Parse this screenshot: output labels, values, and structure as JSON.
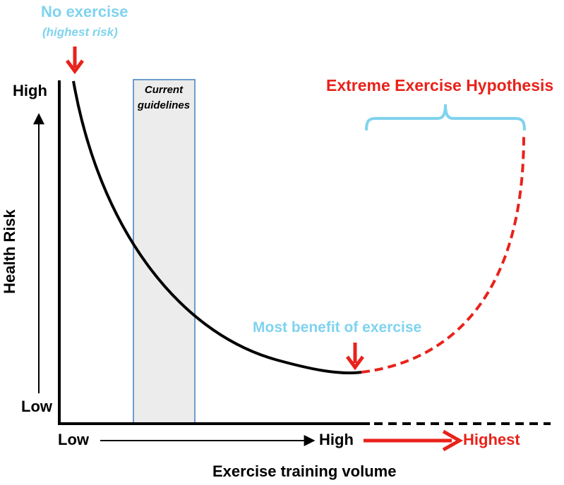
{
  "top_annotation": {
    "title": "No exercise",
    "subtitle": "(highest risk)"
  },
  "y_axis": {
    "label": "Health Risk",
    "high": "High",
    "low": "Low"
  },
  "x_axis": {
    "label": "Exercise training volume",
    "low": "Low",
    "high": "High",
    "highest": "Highest"
  },
  "guidelines_box": {
    "label_line1": "Current",
    "label_line2": "guidelines"
  },
  "extreme_label": "Extreme Exercise Hypothesis",
  "benefit_label": "Most benefit of exercise",
  "colors": {
    "annotation_blue": "#7fd3ee",
    "highlight_red": "#e8221b",
    "axis": "#000000",
    "guidelines_fill": "#ececec",
    "guidelines_border": "#6e9ccd"
  }
}
